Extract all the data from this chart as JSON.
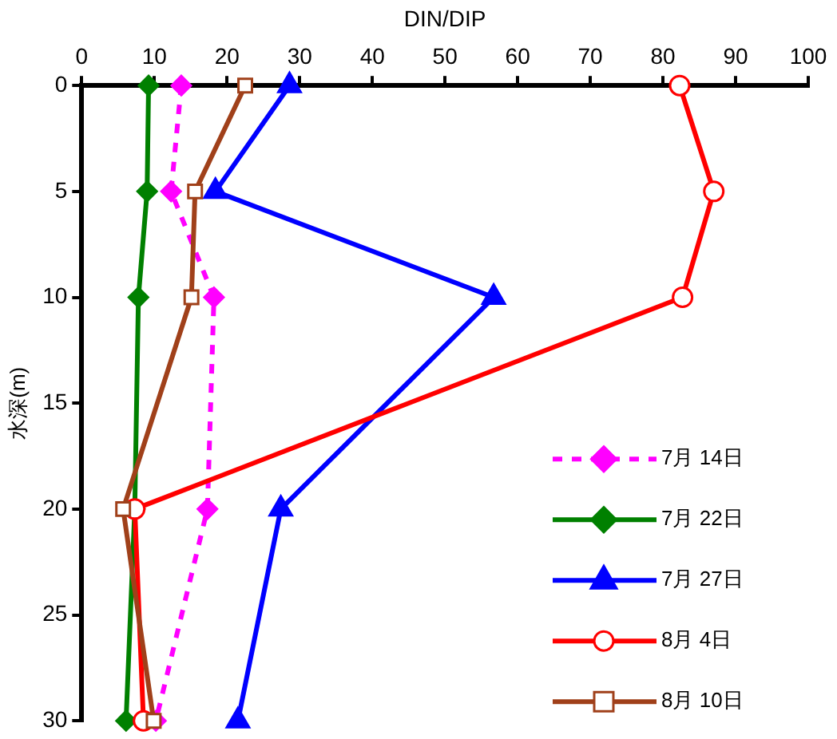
{
  "chart_data": {
    "type": "line",
    "xlabel": "DIN/DIP",
    "ylabel": "水深(m)",
    "xlim": [
      0,
      100
    ],
    "xticks": [
      0,
      10,
      20,
      30,
      40,
      50,
      60,
      70,
      80,
      90,
      100
    ],
    "ylim": [
      30,
      0
    ],
    "yticks": [
      0,
      5,
      10,
      15,
      20,
      25,
      30
    ],
    "grid": false,
    "legend": "bottom right",
    "series": [
      {
        "name": "7月 14日",
        "color": "#ff00ff",
        "marker": "diamond",
        "line_style": "dashed",
        "x": [
          13.7,
          12.3,
          18.2,
          17.3,
          10.2
        ],
        "values": [
          0,
          5,
          10,
          20,
          30
        ]
      },
      {
        "name": "7月 22日",
        "color": "#008000",
        "marker": "diamond",
        "line_style": "solid",
        "x": [
          9.2,
          9.0,
          7.8,
          7.3,
          6.1
        ],
        "values": [
          0,
          5,
          10,
          20,
          30
        ]
      },
      {
        "name": "7月 27日",
        "color": "#0000ff",
        "marker": "triangle",
        "line_style": "solid",
        "x": [
          28.6,
          18.4,
          56.7,
          27.4,
          21.5
        ],
        "values": [
          0,
          5,
          10,
          20,
          30
        ]
      },
      {
        "name": "8月 4日",
        "color": "#ff0000",
        "marker": "circle",
        "line_style": "solid",
        "x": [
          82.3,
          87.0,
          82.7,
          7.3,
          8.5
        ],
        "values": [
          0,
          5,
          10,
          20,
          30
        ]
      },
      {
        "name": "8月 10日",
        "color": "#a0401a",
        "marker": "square",
        "line_style": "solid",
        "x": [
          22.5,
          15.6,
          15.1,
          5.7,
          9.9
        ],
        "values": [
          0,
          5,
          10,
          20,
          30
        ]
      }
    ]
  }
}
